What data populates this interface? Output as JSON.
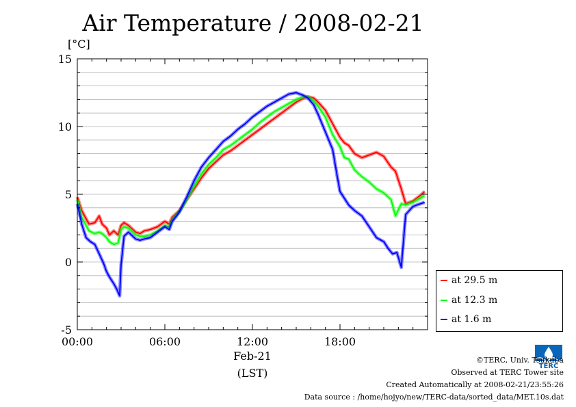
{
  "title": "Air Temperature / 2008-02-21",
  "footer": {
    "copyright": "©TERC, Univ. Tsukuba",
    "site": "Observed at TERC Tower site",
    "created": "Created Automatically at 2008-02-21/23:55:26",
    "source": "Data source : /home/hojyo/new/TERC-data/sorted_data/MET.10s.dat"
  },
  "logo_text": "TERC",
  "chart_data": {
    "type": "line",
    "title": "Air Temperature / 2008-02-21",
    "unit_label": "[°C]",
    "xlim": [
      0,
      24
    ],
    "ylim": [
      -5,
      15
    ],
    "y_ticks": [
      -5,
      0,
      5,
      10,
      15
    ],
    "x_ticks": [
      {
        "value": 0,
        "label": "00:00"
      },
      {
        "value": 6,
        "label": "06:00"
      },
      {
        "value": 12,
        "label": "12:00"
      },
      {
        "value": 18,
        "label": "18:00"
      }
    ],
    "date_label": "Feb-21",
    "xlabel": "(LST)",
    "grid": true,
    "legend_position": "right, below plot",
    "series": [
      {
        "name": "at 29.5 m",
        "color": "#ff0000",
        "x": [
          0,
          0.3,
          0.8,
          1.2,
          1.5,
          1.7,
          2.0,
          2.2,
          2.5,
          2.8,
          3.0,
          3.2,
          3.5,
          3.8,
          4.0,
          4.3,
          4.6,
          5.0,
          5.5,
          6.0,
          6.3,
          6.5,
          6.8,
          7.0,
          7.5,
          8.0,
          8.5,
          9.0,
          9.5,
          10.0,
          10.5,
          11.0,
          11.5,
          12.0,
          12.5,
          13.0,
          13.5,
          14.0,
          14.5,
          15.0,
          15.5,
          15.8,
          16.2,
          16.5,
          17.0,
          17.5,
          18.0,
          18.3,
          18.6,
          19.0,
          19.5,
          20.0,
          20.5,
          21.0,
          21.5,
          21.8,
          22.2,
          22.5,
          23.0,
          23.5,
          23.8
        ],
        "y": [
          4.8,
          3.8,
          2.8,
          2.9,
          3.4,
          2.8,
          2.5,
          2.0,
          2.3,
          2.0,
          2.7,
          2.9,
          2.7,
          2.4,
          2.2,
          2.1,
          2.3,
          2.4,
          2.6,
          3.0,
          2.8,
          3.3,
          3.6,
          3.8,
          4.6,
          5.4,
          6.2,
          6.9,
          7.4,
          7.9,
          8.2,
          8.6,
          9.0,
          9.4,
          9.8,
          10.2,
          10.6,
          11.0,
          11.4,
          11.8,
          12.1,
          12.2,
          12.1,
          11.8,
          11.2,
          10.2,
          9.2,
          8.8,
          8.6,
          8.0,
          7.7,
          7.9,
          8.1,
          7.8,
          7.0,
          6.7,
          5.4,
          4.3,
          4.5,
          4.9,
          5.2
        ]
      },
      {
        "name": "at 12.3 m",
        "color": "#00ff00",
        "x": [
          0,
          0.3,
          0.8,
          1.2,
          1.5,
          1.7,
          2.0,
          2.2,
          2.5,
          2.8,
          3.0,
          3.2,
          3.5,
          3.8,
          4.0,
          4.3,
          4.6,
          5.0,
          5.5,
          6.0,
          6.3,
          6.5,
          6.8,
          7.0,
          7.5,
          8.0,
          8.5,
          9.0,
          9.5,
          10.0,
          10.5,
          11.0,
          11.5,
          12.0,
          12.5,
          13.0,
          13.5,
          14.0,
          14.5,
          15.0,
          15.5,
          15.8,
          16.2,
          16.5,
          17.0,
          17.5,
          18.0,
          18.3,
          18.6,
          19.0,
          19.5,
          20.0,
          20.5,
          21.0,
          21.5,
          21.8,
          22.2,
          22.5,
          23.0,
          23.5,
          23.8
        ],
        "y": [
          4.6,
          3.3,
          2.3,
          2.1,
          2.2,
          2.1,
          1.8,
          1.5,
          1.3,
          1.4,
          2.4,
          2.6,
          2.5,
          2.2,
          2.0,
          1.9,
          1.9,
          2.0,
          2.3,
          2.7,
          2.6,
          3.1,
          3.5,
          3.7,
          4.6,
          5.6,
          6.5,
          7.2,
          7.7,
          8.3,
          8.6,
          9.0,
          9.4,
          9.8,
          10.3,
          10.7,
          11.1,
          11.4,
          11.7,
          12.0,
          12.2,
          12.2,
          11.9,
          11.5,
          10.7,
          9.4,
          8.5,
          7.7,
          7.6,
          6.8,
          6.3,
          5.9,
          5.4,
          5.1,
          4.6,
          3.4,
          4.3,
          4.2,
          4.4,
          4.7,
          4.9
        ]
      },
      {
        "name": "at 1.6 m",
        "color": "#0000ff",
        "x": [
          0,
          0.3,
          0.6,
          0.9,
          1.2,
          1.5,
          1.8,
          2.0,
          2.2,
          2.5,
          2.7,
          2.9,
          3.0,
          3.2,
          3.5,
          3.8,
          4.0,
          4.3,
          4.6,
          5.0,
          5.5,
          6.0,
          6.3,
          6.5,
          6.8,
          7.0,
          7.5,
          8.0,
          8.5,
          9.0,
          9.5,
          10.0,
          10.5,
          11.0,
          11.5,
          12.0,
          12.5,
          13.0,
          13.5,
          14.0,
          14.5,
          15.0,
          15.5,
          15.8,
          16.2,
          16.5,
          17.0,
          17.5,
          17.8,
          18.0,
          18.3,
          18.6,
          19.0,
          19.5,
          20.0,
          20.5,
          21.0,
          21.3,
          21.6,
          21.9,
          22.2,
          22.5,
          23.0,
          23.5,
          23.8
        ],
        "y": [
          4.3,
          2.8,
          1.8,
          1.5,
          1.3,
          0.6,
          -0.1,
          -0.7,
          -1.1,
          -1.6,
          -2.0,
          -2.5,
          -0.2,
          1.9,
          2.2,
          1.9,
          1.7,
          1.6,
          1.7,
          1.8,
          2.2,
          2.6,
          2.4,
          3.0,
          3.4,
          3.7,
          4.8,
          6.0,
          7.0,
          7.7,
          8.3,
          8.9,
          9.3,
          9.8,
          10.2,
          10.7,
          11.1,
          11.5,
          11.8,
          12.1,
          12.4,
          12.5,
          12.3,
          12.1,
          11.6,
          10.9,
          9.6,
          8.3,
          6.4,
          5.2,
          4.7,
          4.2,
          3.8,
          3.4,
          2.6,
          1.8,
          1.5,
          1.0,
          0.6,
          0.7,
          -0.4,
          3.5,
          4.1,
          4.3,
          4.4
        ]
      }
    ]
  }
}
